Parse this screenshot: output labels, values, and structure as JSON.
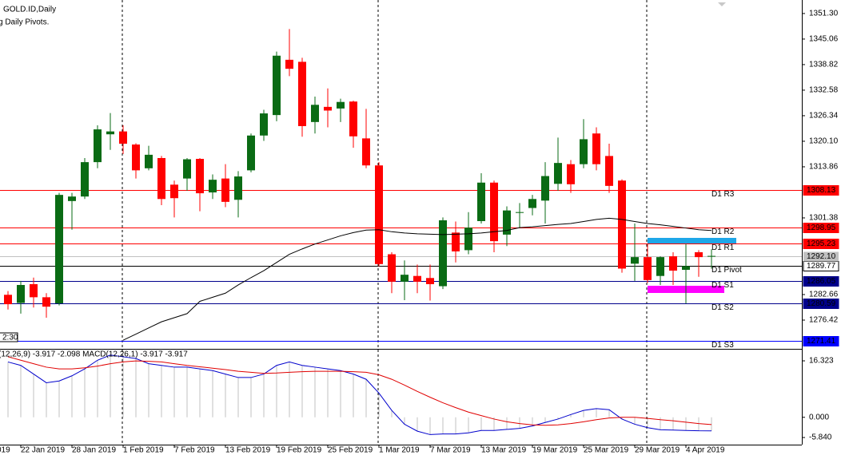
{
  "chart_data": [
    {
      "type": "candlestick",
      "title": "GOLD.ID,Daily",
      "subtitle": "g Daily Pivots.",
      "left_cut_label": "019",
      "time_box": "2:30",
      "categories": [
        null,
        "22 Jan 2019",
        null,
        null,
        null,
        "28 Jan 2019",
        null,
        null,
        null,
        "1 Feb 2019",
        null,
        null,
        null,
        "7 Feb 2019",
        null,
        null,
        null,
        "13 Feb 2019",
        null,
        null,
        null,
        "19 Feb 2019",
        null,
        null,
        null,
        "25 Feb 2019",
        null,
        null,
        null,
        "1 Mar 2019",
        null,
        null,
        null,
        "7 Mar 2019",
        null,
        null,
        null,
        "13 Mar 2019",
        null,
        null,
        null,
        "19 Mar 2019",
        null,
        null,
        null,
        "25 Mar 2019",
        null,
        null,
        null,
        "29 Mar 2019",
        null,
        null,
        null,
        "4 Apr 2019",
        null,
        null
      ],
      "open": [
        1282.6,
        1280.6,
        1285.2,
        1282.0,
        1280.5,
        1305.5,
        1306.6,
        1315,
        1321.8,
        1322.5,
        1319.3,
        1313.5,
        1316,
        1309.5,
        1311,
        1315.8,
        1307.6,
        1311,
        1305.8,
        1313,
        1321.5,
        1326.5,
        1340,
        1339.5,
        1324.8,
        1328.5,
        1328.1,
        1329.8,
        1320.8,
        1314.2,
        1292.5,
        1285.8,
        1287.2,
        1286.7,
        1284.7,
        1297.8,
        1293.5,
        1300.6,
        1310,
        1297.3,
        1302.6,
        1303.8,
        1305.6,
        1309.7,
        1314.5,
        1314.5,
        1322,
        1316.5,
        1310.5,
        1290.2,
        1291.8,
        1287.2,
        1292,
        1288.7,
        1293,
        1292
      ],
      "high": [
        1283.5,
        1286,
        1286.8,
        1283,
        1307.5,
        1307.5,
        1316,
        1324,
        1327,
        1324,
        1319.6,
        1319,
        1316.5,
        1310.5,
        1316,
        1316,
        1312,
        1314.5,
        1312.8,
        1322,
        1327.8,
        1342,
        1347.5,
        1340.5,
        1331,
        1333,
        1330.5,
        1330,
        1328,
        1315,
        1293,
        1291,
        1290,
        1290,
        1301.5,
        1300.5,
        1302.8,
        1312.3,
        1310.5,
        1304.2,
        1305,
        1307,
        1315,
        1321,
        1315.5,
        1325.5,
        1323.5,
        1319.5,
        1310.8,
        1300,
        1295,
        1292,
        1293,
        1295,
        1293.5,
        1293.7
      ],
      "low": [
        1279,
        1278,
        1279.5,
        1277,
        1280,
        1298.5,
        1306,
        1313.5,
        1318,
        1317,
        1311,
        1313,
        1304.5,
        1301.5,
        1308,
        1303,
        1306,
        1304,
        1301.5,
        1312.5,
        1320.2,
        1325,
        1336,
        1321.2,
        1322,
        1323.5,
        1324.8,
        1318.5,
        1313.5,
        1289.5,
        1283,
        1281.3,
        1283,
        1281.2,
        1284,
        1290.5,
        1292.5,
        1300,
        1293,
        1294.5,
        1299,
        1302,
        1300,
        1308,
        1307.5,
        1313.5,
        1313,
        1307.5,
        1288,
        1286,
        1285.5,
        1285,
        1285,
        1280.5,
        1287,
        1289
      ],
      "close": [
        1280.3,
        1285.0,
        1282.0,
        1279.7,
        1307,
        1306.6,
        1315,
        1323,
        1322.5,
        1319.5,
        1313,
        1316.8,
        1306,
        1306.2,
        1315.7,
        1307.4,
        1310.7,
        1305.3,
        1311.5,
        1321.5,
        1326.9,
        1341,
        1337.8,
        1323.8,
        1329,
        1327.6,
        1329.7,
        1321.3,
        1314.2,
        1290.1,
        1285.8,
        1287.5,
        1285.8,
        1285.2,
        1300.8,
        1293.2,
        1299,
        1310,
        1295.7,
        1303.2,
        1302.8,
        1306,
        1311.6,
        1314.8,
        1309.6,
        1320.6,
        1314.5,
        1309.2,
        1289,
        1291.8,
        1286.2,
        1291.8,
        1288.5,
        1289.6,
        1291.8,
        1292.1
      ],
      "up_color": "#0a6b14",
      "down_color": "#ff0000",
      "series": [
        {
          "color": "#000000",
          "values": [
            null,
            null,
            null,
            null,
            null,
            null,
            null,
            null,
            null,
            1271.5,
            1273,
            1274.5,
            1276,
            1277,
            1278,
            1281,
            1282,
            1283,
            1285,
            1286.8,
            1288.5,
            1290.5,
            1292.5,
            1293.8,
            1295,
            1296,
            1297,
            1297.8,
            1298.4,
            1298.5,
            1298,
            1297.7,
            1297.5,
            1297.4,
            1297.3,
            1297.4,
            1297.5,
            1297.7,
            1298,
            1298.3,
            1299,
            1299.2,
            1299.5,
            1299.8,
            1300,
            1300.5,
            1301,
            1301.3,
            1301,
            1300.5,
            1300,
            1299.7,
            1299.3,
            1298.9,
            1298.5,
            1298.3
          ]
        }
      ],
      "levels": [
        {
          "name": "D1 R3",
          "value": 1308.13,
          "color": "#ff0000",
          "text_color": "#ffffff"
        },
        {
          "name": "D1 R2",
          "value": 1298.95,
          "color": "#ff0000",
          "text_color": "#ffffff"
        },
        {
          "name": "D1 R1",
          "value": 1295.23,
          "color": "#ff0000",
          "text_color": "#ffffff"
        },
        {
          "name": "D1 Pivot",
          "value": 1289.77,
          "color": "#000000",
          "text_color": "#000000"
        },
        {
          "name": "D1 S1",
          "value": 1286.05,
          "color": "#00008b",
          "text_color": "#ffffff"
        },
        {
          "name": "D1 S2",
          "value": 1280.59,
          "color": "#00008b",
          "text_color": "#ffffff"
        },
        {
          "name": "D1 S3",
          "value": 1271.41,
          "color": "#0000ff",
          "text_color": "#ffffff"
        }
      ],
      "bid": 1292.1,
      "bid_label": "1292.10",
      "ylim": [
        1269.4,
        1354.6
      ],
      "yticks": [
        {
          "value": 1351.3,
          "label": "1351.30"
        },
        {
          "value": 1345.06,
          "label": "1345.06"
        },
        {
          "value": 1338.82,
          "label": "1338.82"
        },
        {
          "value": 1332.58,
          "label": "1332.58"
        },
        {
          "value": 1326.34,
          "label": "1326.34"
        },
        {
          "value": 1320.1,
          "label": "1320.10"
        },
        {
          "value": 1313.86,
          "label": "1313.86"
        },
        {
          "value": 1301.38,
          "label": "1301.38"
        },
        {
          "value": 1282.66,
          "label": "1282.66"
        },
        {
          "value": 1276.42,
          "label": "1276.42"
        }
      ]
    },
    {
      "type": "macd",
      "title": "(12,26,9) -3.917 -2.098 MACD(12,26,1) -3.917 -3.917",
      "series": [
        {
          "color": "#0000cc",
          "values": [
            16,
            15,
            12.5,
            10,
            10.5,
            12,
            14,
            16.5,
            18,
            17.5,
            17,
            15.5,
            15,
            14.5,
            14.5,
            14,
            13.5,
            12.5,
            11.5,
            11.5,
            12.5,
            15,
            16,
            15,
            14.5,
            14,
            13.5,
            12.5,
            11,
            7,
            2,
            -2,
            -4,
            -5,
            -4.8,
            -4.8,
            -4.5,
            -3.8,
            -3.8,
            -3.5,
            -3.2,
            -2.5,
            -1.5,
            -0.5,
            0.8,
            2,
            2.5,
            2.2,
            -0.5,
            -2,
            -3,
            -3.6,
            -3.7,
            -3.8,
            -3.9,
            -3.917
          ]
        },
        {
          "color": "#e00000",
          "values": [
            17.5,
            16.5,
            15.5,
            14.5,
            14,
            14,
            14.3,
            14.8,
            15.5,
            16,
            16.3,
            16.2,
            16,
            15.5,
            15,
            14.6,
            14.2,
            13.8,
            13.3,
            13,
            12.7,
            12.8,
            13,
            13.2,
            13.3,
            13.3,
            13.3,
            13.2,
            13,
            12.3,
            11,
            9.3,
            7.5,
            5.8,
            4.2,
            2.8,
            1.5,
            0.5,
            -0.5,
            -1.3,
            -1.8,
            -2.2,
            -2.3,
            -2.2,
            -1.8,
            -1.3,
            -0.7,
            -0.2,
            0,
            0,
            -0.3,
            -0.7,
            -1,
            -1.4,
            -1.8,
            -2.098
          ]
        }
      ],
      "histogram_color": "#c0c0c0",
      "ylim": [
        -7.9,
        19.1
      ],
      "yticks": [
        16.323,
        {
          "value": 0,
          "label": "0.000"
        },
        {
          "value": -5.84,
          "label": "-5.840"
        }
      ]
    }
  ]
}
